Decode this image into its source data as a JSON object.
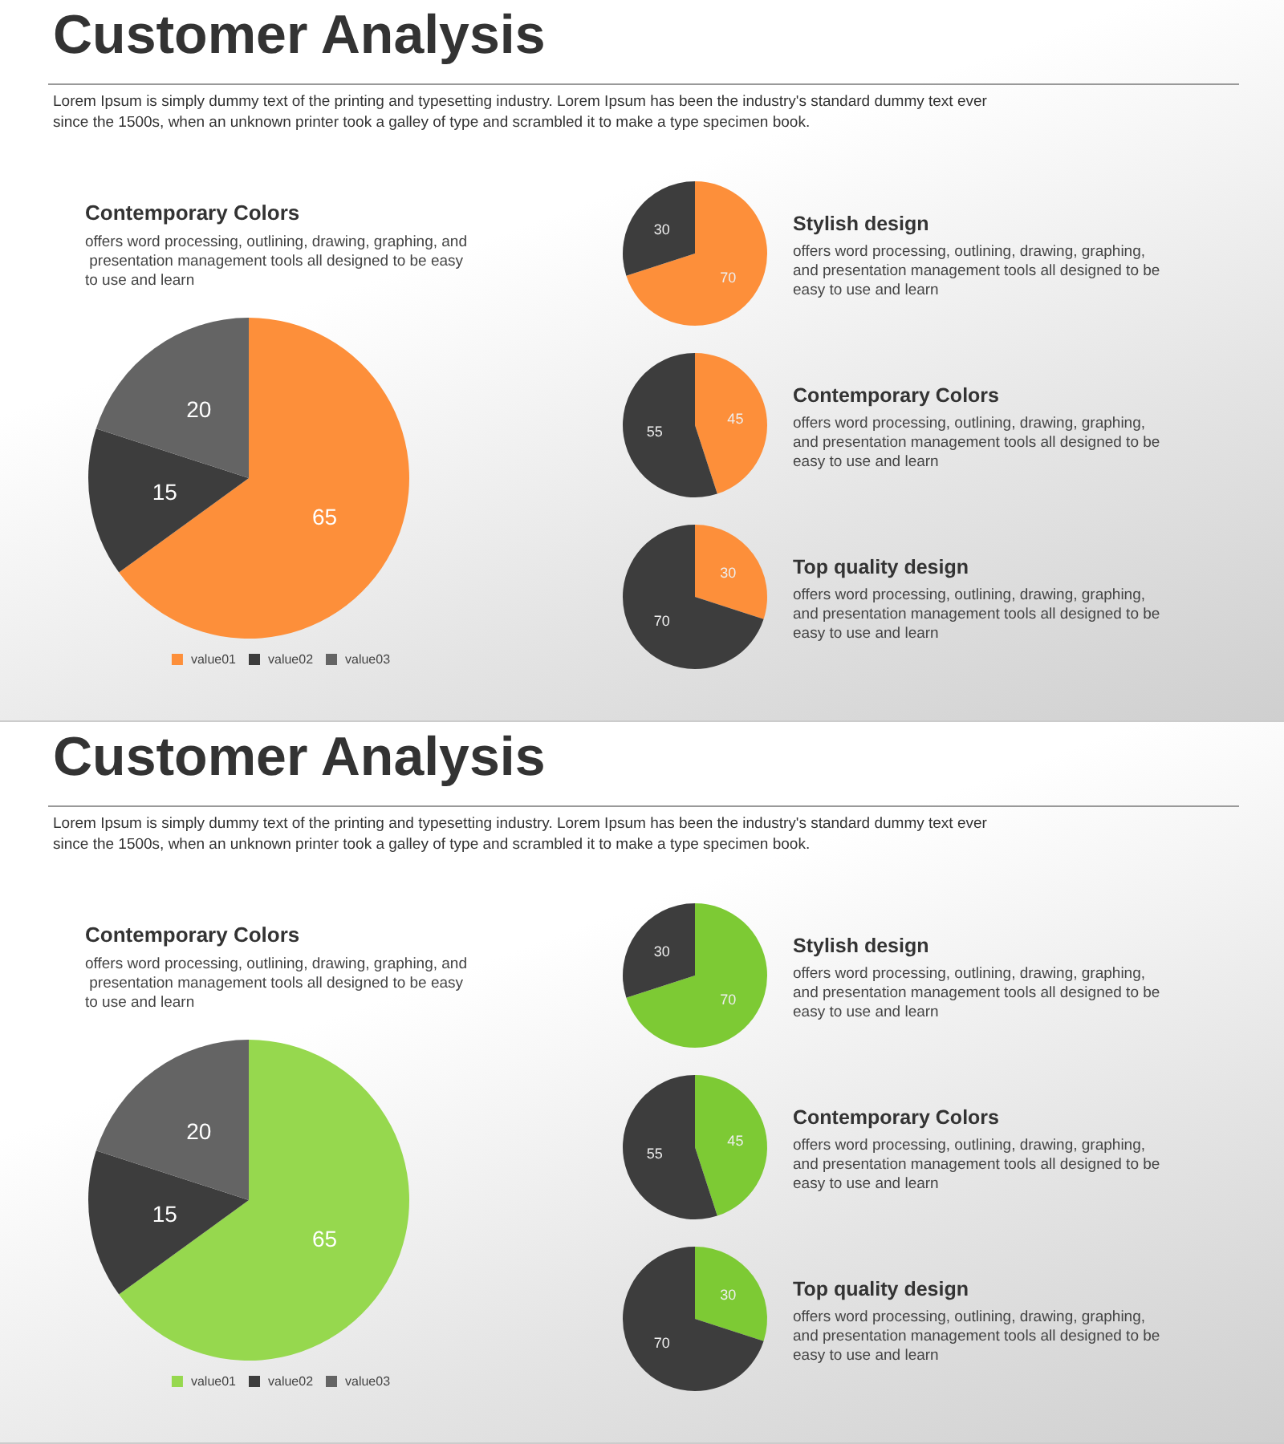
{
  "chart_data": [
    {
      "type": "other",
      "title": "Customer Analysis",
      "subtitle": "Lorem Ipsum is simply dummy text of the printing and typesetting industry. Lorem Ipsum has been the industry's standard dummy text ever since the 1500s, when an unknown printer took a galley of type and scrambled it to make a type specimen book."
    },
    {
      "type": "pie",
      "title": "Contemporary Colors",
      "subtitle": "offers word processing, outlining, drawing, graphing, and presentation management tools all designed to be easy to use and learn",
      "categories": [
        "value01",
        "value02",
        "value03"
      ],
      "values": [
        65,
        15,
        20
      ],
      "colors": [
        "#fd8f3a",
        "#3d3d3d",
        "#646464"
      ],
      "data_labels": true,
      "legend": "bottom"
    },
    {
      "type": "pie",
      "title": "Stylish design",
      "subtitle": "offers word processing, outlining, drawing, graphing, and presentation management tools all designed to be easy to use and learn",
      "categories": [
        null,
        null
      ],
      "values": [
        70,
        30
      ],
      "colors": [
        "#fd8f3a",
        "#3d3d3d"
      ],
      "data_labels": true
    },
    {
      "type": "pie",
      "title": "Contemporary Colors",
      "subtitle": "offers word processing, outlining, drawing, graphing, and presentation management tools all designed to be easy to use and learn",
      "categories": [
        null,
        null
      ],
      "values": [
        45,
        55
      ],
      "colors": [
        "#fd8f3a",
        "#3d3d3d"
      ],
      "data_labels": true
    },
    {
      "type": "pie",
      "title": "Top quality design",
      "subtitle": "offers word processing, outlining, drawing, graphing, and presentation management tools all designed to be easy to use and learn",
      "categories": [
        null,
        null
      ],
      "values": [
        30,
        70
      ],
      "colors": [
        "#fd8f3a",
        "#3d3d3d"
      ],
      "data_labels": true
    },
    {
      "type": "other",
      "title": "Customer Analysis",
      "subtitle": "Lorem Ipsum is simply dummy text of the printing and typesetting industry. Lorem Ipsum has been the industry's standard dummy text ever since the 1500s, when an unknown printer took a galley of type and scrambled it to make a type specimen book."
    },
    {
      "type": "pie",
      "title": "Contemporary Colors",
      "subtitle": "offers word processing, outlining, drawing, graphing, and presentation management tools all designed to be easy to use and learn",
      "categories": [
        "value01",
        "value02",
        "value03"
      ],
      "values": [
        65,
        15,
        20
      ],
      "colors": [
        "#96d84e",
        "#3d3d3d",
        "#646464"
      ],
      "data_labels": true,
      "legend": "bottom"
    },
    {
      "type": "pie",
      "title": "Stylish design",
      "subtitle": "offers word processing, outlining, drawing, graphing, and presentation management tools all designed to be easy to use and learn",
      "categories": [
        null,
        null
      ],
      "values": [
        70,
        30
      ],
      "colors": [
        "#7dca34",
        "#3d3d3d"
      ],
      "data_labels": true
    },
    {
      "type": "pie",
      "title": "Contemporary Colors",
      "subtitle": "offers word processing, outlining, drawing, graphing, and presentation management tools all designed to be easy to use and learn",
      "categories": [
        null,
        null
      ],
      "values": [
        45,
        55
      ],
      "colors": [
        "#7dca34",
        "#3d3d3d"
      ],
      "data_labels": true
    },
    {
      "type": "pie",
      "title": "Top quality design",
      "subtitle": "offers word processing, outlining, drawing, graphing, and presentation management tools all designed to be easy to use and learn",
      "categories": [
        null,
        null
      ],
      "values": [
        30,
        70
      ],
      "colors": [
        "#7dca34",
        "#3d3d3d"
      ],
      "data_labels": true
    }
  ]
}
